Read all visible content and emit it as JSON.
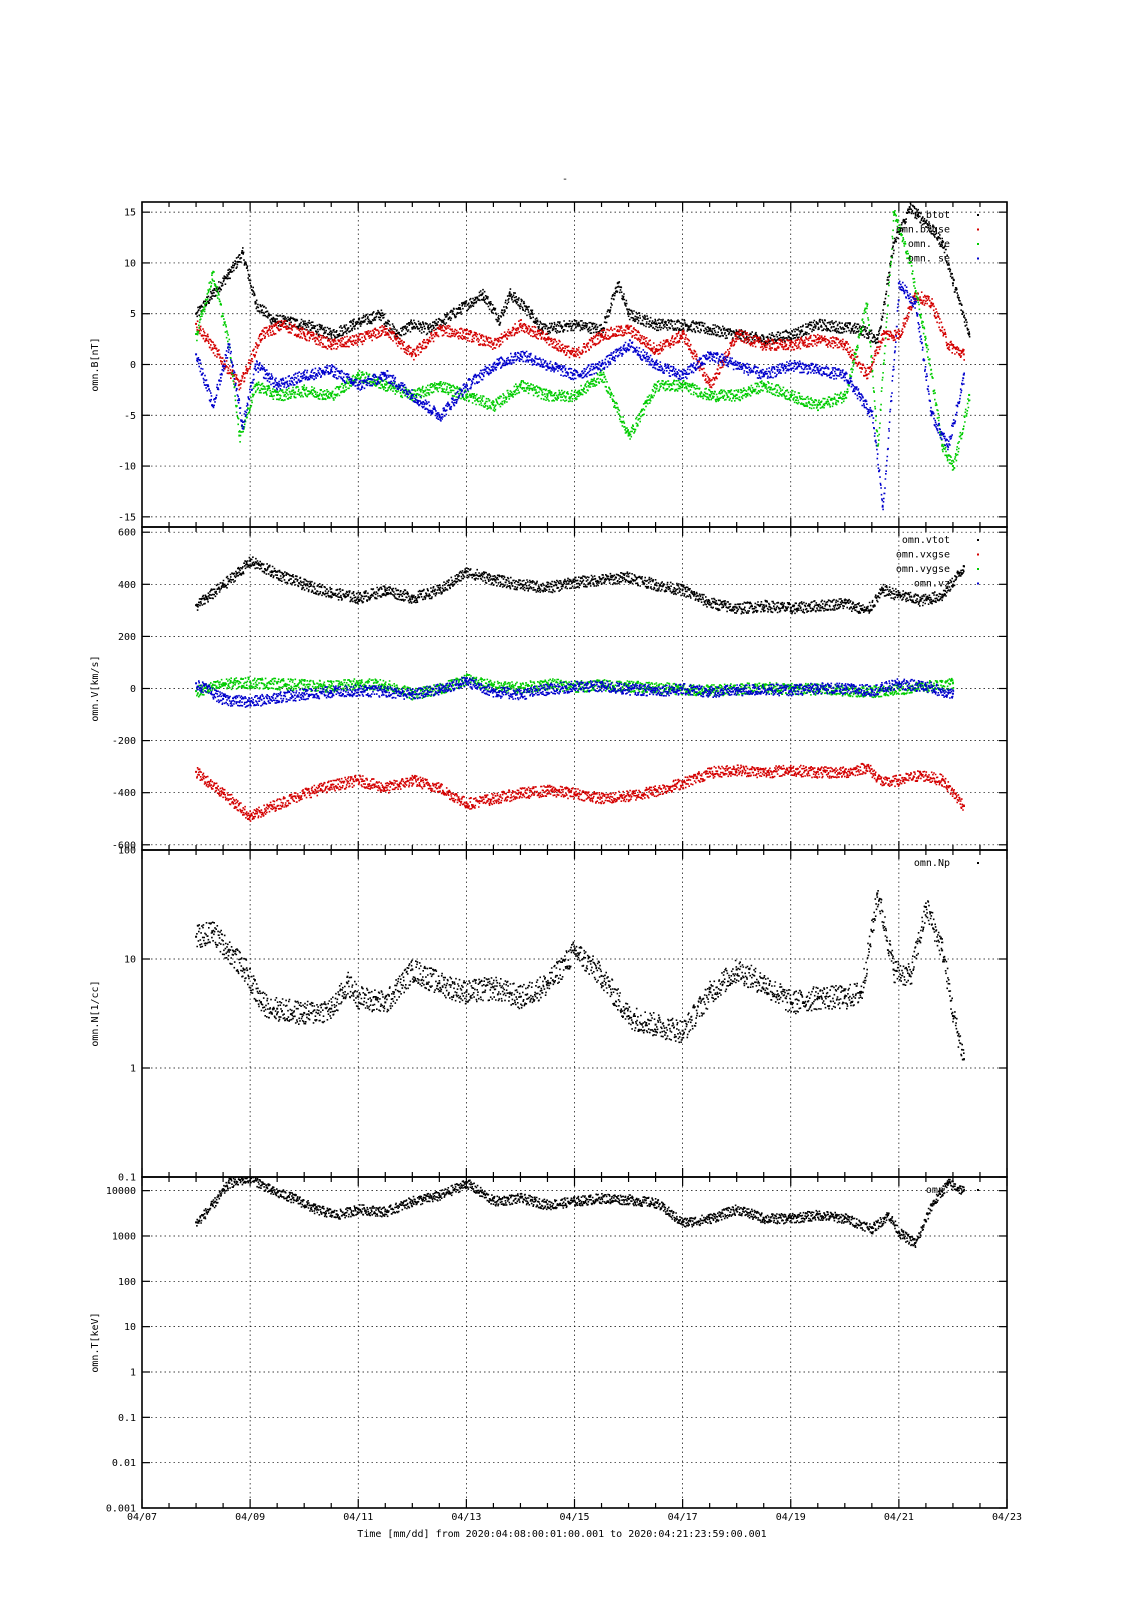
{
  "title": "-",
  "x_axis": {
    "label": "Time [mm/dd]  from 2020:04:08:00:01:00.001  to  2020:04:21:23:59:00.001",
    "ticks": [
      "04/07",
      "04/09",
      "04/11",
      "04/13",
      "04/15",
      "04/17",
      "04/19",
      "04/21",
      "04/23"
    ]
  },
  "colors": {
    "black": "#000000",
    "red": "#d40000",
    "green": "#00cc00",
    "blue": "#0000cc"
  },
  "chart_data": [
    {
      "type": "scatter",
      "ylabel": "omn.B[nT]",
      "yscale": "linear",
      "ylim": [
        -16,
        16
      ],
      "yticks": [
        -15,
        -10,
        -5,
        0,
        5,
        10,
        15
      ],
      "ytick_labels": [
        "-15",
        "-10",
        "-5",
        "0",
        "5",
        "10",
        "15"
      ],
      "xlim_days": [
        0,
        16
      ],
      "legend": [
        "omn.btot",
        "omn.bxgse",
        "omn.bygse",
        "omn.bzgse"
      ],
      "legend_visible_text": [
        "n.btot",
        "omn.bxgse",
        "omn.  se",
        "omn.  se"
      ],
      "legend_placement": "top-right",
      "series": [
        {
          "name": "omn.btot",
          "color": "black",
          "x": [
            1,
            1.3,
            1.6,
            1.85,
            2.1,
            2.4,
            3,
            3.5,
            3.9,
            4.4,
            4.7,
            5,
            5.3,
            6.3,
            6.6,
            6.8,
            7.2,
            7.4,
            8,
            8.5,
            8.8,
            9,
            9.5,
            10,
            10.5,
            11,
            11.5,
            12,
            12.5,
            13.3,
            13.6,
            13.9,
            14.2,
            14.5,
            14.8,
            15,
            15.3
          ],
          "y": [
            5,
            7,
            9,
            11,
            6,
            4.5,
            4,
            3,
            4,
            5,
            3,
            4,
            3.5,
            7,
            4.5,
            7,
            5,
            3.5,
            4,
            3.5,
            8,
            5,
            4,
            4,
            3.5,
            3,
            2.5,
            3,
            4,
            3.5,
            2.5,
            12,
            15.5,
            14,
            12,
            8,
            3
          ]
        },
        {
          "name": "omn.bxgse",
          "color": "red",
          "x": [
            1,
            1.4,
            1.8,
            2.2,
            2.6,
            3,
            3.5,
            4,
            4.5,
            5,
            5.5,
            6,
            6.5,
            7,
            7.5,
            8,
            8.5,
            9,
            9.5,
            10,
            10.5,
            11,
            11.5,
            12,
            12.5,
            13,
            13.4,
            13.7,
            14,
            14.3,
            14.6,
            14.9,
            15.2
          ],
          "y": [
            4,
            1,
            -2,
            3,
            4,
            3,
            2,
            2.5,
            3.5,
            1,
            3.5,
            3,
            2,
            4,
            2.5,
            1,
            3,
            3.5,
            1.5,
            3,
            -2,
            3,
            2,
            2,
            2.5,
            2,
            -1,
            3,
            3,
            7,
            6,
            2,
            1
          ]
        },
        {
          "name": "omn.bygse",
          "color": "green",
          "x": [
            1,
            1.3,
            1.6,
            1.8,
            2.1,
            2.5,
            3,
            3.5,
            4,
            4.5,
            5,
            5.5,
            6,
            6.5,
            7,
            7.5,
            8,
            8.5,
            9,
            9.5,
            10,
            10.5,
            11,
            11.5,
            12,
            12.5,
            13,
            13.4,
            13.6,
            13.9,
            14.2,
            14.5,
            14.8,
            15,
            15.3
          ],
          "y": [
            3,
            9,
            2,
            -7,
            -2,
            -3,
            -2.5,
            -3,
            -1,
            -2,
            -3,
            -2,
            -3,
            -4,
            -2,
            -3,
            -3,
            -1,
            -7,
            -2,
            -2,
            -3,
            -3,
            -2,
            -3,
            -4,
            -3,
            6,
            -8,
            15,
            10,
            2,
            -8,
            -10,
            -3
          ]
        },
        {
          "name": "omn.bzgse",
          "color": "blue",
          "x": [
            1,
            1.3,
            1.6,
            1.85,
            2.1,
            2.5,
            3,
            3.5,
            4,
            4.5,
            5,
            5.5,
            6,
            6.5,
            7,
            7.5,
            8,
            8.5,
            9,
            9.5,
            10,
            10.5,
            11,
            11.5,
            12,
            12.5,
            13,
            13.5,
            13.7,
            14,
            14.3,
            14.6,
            14.9,
            15.2
          ],
          "y": [
            1,
            -4,
            2,
            -6,
            0,
            -2,
            -1,
            -0.5,
            -2,
            -1,
            -3,
            -5,
            -2,
            0,
            1,
            0,
            -1,
            0,
            2,
            0,
            -1,
            1,
            0,
            -1,
            0,
            -0.5,
            -1,
            -5,
            -14,
            8,
            6,
            -5,
            -8,
            -1
          ]
        }
      ]
    },
    {
      "type": "scatter",
      "ylabel": "omn.V[km/s]",
      "yscale": "linear",
      "ylim": [
        -620,
        620
      ],
      "yticks": [
        -600,
        -400,
        -200,
        0,
        200,
        400,
        600
      ],
      "ytick_labels": [
        "-600",
        "-400",
        "-200",
        "0",
        "200",
        "400",
        "600"
      ],
      "xlim_days": [
        0,
        16
      ],
      "legend": [
        "omn.vtot",
        "omn.vxgse",
        "omn.vygse",
        "omn.vzgse"
      ],
      "legend_visible_text": [
        "omn.vtot",
        "omn.vxgse",
        "omn.vygse",
        "omn.vz"
      ],
      "legend_placement": "top-right",
      "series": [
        {
          "name": "omn.vtot",
          "color": "black",
          "x": [
            1,
            1.5,
            2,
            2.4,
            3,
            3.5,
            4,
            4.5,
            5,
            5.5,
            6,
            6.5,
            7,
            7.5,
            8,
            8.5,
            9,
            9.5,
            10,
            10.5,
            11,
            11.5,
            12,
            12.5,
            13,
            13.4,
            13.7,
            14,
            14.4,
            14.8,
            15.2
          ],
          "y": [
            320,
            400,
            490,
            450,
            400,
            370,
            350,
            380,
            350,
            380,
            450,
            420,
            400,
            390,
            410,
            420,
            430,
            400,
            380,
            330,
            310,
            320,
            310,
            320,
            330,
            300,
            380,
            360,
            340,
            360,
            470
          ]
        },
        {
          "name": "omn.vxgse",
          "color": "red",
          "x": [
            1,
            1.5,
            2,
            2.4,
            3,
            3.5,
            4,
            4.5,
            5,
            5.5,
            6,
            6.5,
            7,
            7.5,
            8,
            8.5,
            9,
            9.5,
            10,
            10.5,
            11,
            11.5,
            12,
            12.5,
            13,
            13.4,
            13.7,
            14,
            14.4,
            14.8,
            15.2
          ],
          "y": [
            -320,
            -400,
            -490,
            -450,
            -400,
            -370,
            -350,
            -380,
            -350,
            -380,
            -440,
            -420,
            -400,
            -390,
            -400,
            -420,
            -410,
            -390,
            -360,
            -320,
            -310,
            -320,
            -310,
            -320,
            -320,
            -300,
            -360,
            -350,
            -330,
            -350,
            -450
          ]
        },
        {
          "name": "omn.vygse",
          "color": "green",
          "x": [
            1,
            1.5,
            2,
            2.5,
            3,
            3.5,
            4,
            4.5,
            5,
            5.5,
            6,
            6.5,
            7,
            7.5,
            8,
            8.5,
            9,
            9.5,
            10,
            10.5,
            11,
            11.5,
            12,
            12.5,
            13,
            13.5,
            14,
            14.5,
            15
          ],
          "y": [
            -10,
            20,
            25,
            20,
            15,
            10,
            20,
            15,
            -20,
            0,
            40,
            10,
            5,
            20,
            10,
            15,
            10,
            5,
            0,
            -5,
            0,
            5,
            0,
            0,
            -5,
            -10,
            0,
            10,
            20
          ]
        },
        {
          "name": "omn.vzgse",
          "color": "blue",
          "x": [
            1,
            1.5,
            2,
            2.5,
            3,
            3.5,
            4,
            4.5,
            5,
            5.5,
            6,
            6.5,
            7,
            7.5,
            8,
            8.5,
            9,
            9.5,
            10,
            10.5,
            11,
            11.5,
            12,
            12.5,
            13,
            13.5,
            14,
            14.5,
            15
          ],
          "y": [
            20,
            -40,
            -50,
            -30,
            -20,
            -10,
            -5,
            -10,
            -20,
            0,
            30,
            -10,
            -20,
            0,
            10,
            10,
            0,
            -5,
            0,
            -10,
            -5,
            0,
            -5,
            5,
            0,
            -5,
            20,
            10,
            -20
          ]
        }
      ]
    },
    {
      "type": "scatter",
      "ylabel": "omn.N[1/cc]",
      "yscale": "log",
      "ylim": [
        0.1,
        100
      ],
      "yticks": [
        0.1,
        1,
        10,
        100
      ],
      "ytick_labels": [
        "0.1",
        "1",
        "10",
        "100"
      ],
      "xlim_days": [
        0,
        16
      ],
      "legend": [
        "omn.Np"
      ],
      "legend_visible_text": [
        "omn.Np"
      ],
      "legend_placement": "top-right",
      "series": [
        {
          "name": "omn.Np",
          "color": "black",
          "x": [
            1,
            1.3,
            1.6,
            1.9,
            2.2,
            2.5,
            3,
            3.5,
            3.8,
            4,
            4.5,
            5,
            5.5,
            6,
            6.5,
            7,
            7.5,
            8,
            8.5,
            9,
            9.5,
            10,
            10.5,
            11,
            11.5,
            12,
            12.5,
            13,
            13.3,
            13.6,
            13.9,
            14.2,
            14.5,
            14.8,
            15,
            15.2
          ],
          "y": [
            16,
            18,
            12,
            8,
            4,
            3.5,
            3.2,
            3.5,
            6,
            4.5,
            4,
            8,
            6,
            5,
            5.5,
            4.5,
            6,
            12,
            7,
            3,
            2.5,
            2.2,
            5,
            8,
            6,
            4,
            4.5,
            4.5,
            5,
            40,
            8,
            7,
            30,
            12,
            3,
            1.2
          ]
        }
      ]
    },
    {
      "type": "scatter",
      "ylabel": "omn.T[keV]",
      "yscale": "log",
      "ylim": [
        0.001,
        20000
      ],
      "yticks": [
        0.001,
        0.01,
        0.1,
        1,
        10,
        100,
        1000,
        10000
      ],
      "ytick_labels": [
        "0.001",
        "0.01",
        "0.1",
        "1",
        "10",
        "100",
        "1000",
        "10000"
      ],
      "xlim_days": [
        0,
        16
      ],
      "legend": [
        "omn.T"
      ],
      "legend_visible_text": [
        "omn."
      ],
      "legend_placement": "top-right",
      "series": [
        {
          "name": "omn.T",
          "color": "black",
          "x": [
            1,
            1.3,
            1.6,
            2,
            2.4,
            2.8,
            3.2,
            3.6,
            4,
            4.5,
            5,
            5.5,
            6,
            6.5,
            7,
            7.5,
            8,
            8.5,
            9,
            9.5,
            10,
            10.5,
            11,
            11.5,
            12,
            12.5,
            13,
            13.5,
            13.8,
            14,
            14.3,
            14.6,
            14.9,
            15.2
          ],
          "y": [
            2000,
            5000,
            15000,
            20000,
            10000,
            7000,
            4000,
            3000,
            4000,
            3500,
            6000,
            8000,
            15000,
            6000,
            7000,
            5000,
            6000,
            7000,
            6500,
            5500,
            2000,
            2500,
            4000,
            2500,
            2500,
            3000,
            2500,
            1500,
            3000,
            1200,
            700,
            5000,
            15000,
            10000
          ]
        }
      ]
    }
  ]
}
